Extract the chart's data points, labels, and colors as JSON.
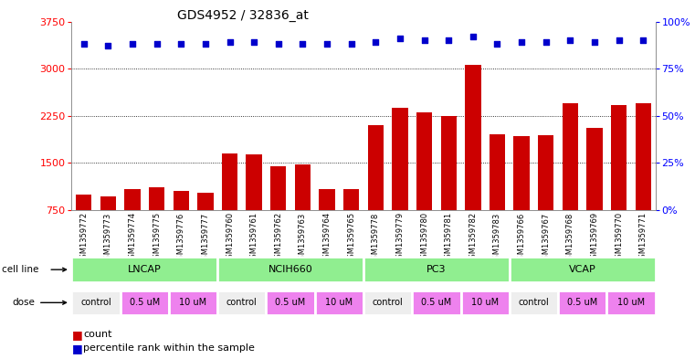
{
  "title": "GDS4952 / 32836_at",
  "samples": [
    "GSM1359772",
    "GSM1359773",
    "GSM1359774",
    "GSM1359775",
    "GSM1359776",
    "GSM1359777",
    "GSM1359760",
    "GSM1359761",
    "GSM1359762",
    "GSM1359763",
    "GSM1359764",
    "GSM1359765",
    "GSM1359778",
    "GSM1359779",
    "GSM1359780",
    "GSM1359781",
    "GSM1359782",
    "GSM1359783",
    "GSM1359766",
    "GSM1359767",
    "GSM1359768",
    "GSM1359769",
    "GSM1359770",
    "GSM1359771"
  ],
  "bar_values": [
    1000,
    960,
    1080,
    1110,
    1060,
    1030,
    1650,
    1640,
    1440,
    1480,
    1090,
    1090,
    2100,
    2380,
    2300,
    2250,
    3060,
    1960,
    1930,
    1940,
    2450,
    2050,
    2420,
    2450
  ],
  "percentile_values": [
    88,
    87,
    88,
    88,
    88,
    88,
    89,
    89,
    88,
    88,
    88,
    88,
    89,
    91,
    90,
    90,
    92,
    88,
    89,
    89,
    90,
    89,
    90,
    90
  ],
  "ylim_left": [
    750,
    3750
  ],
  "ylim_right": [
    0,
    100
  ],
  "yticks_left": [
    750,
    1500,
    2250,
    3000,
    3750
  ],
  "yticks_right": [
    0,
    25,
    50,
    75,
    100
  ],
  "bar_color": "#cc0000",
  "dot_color": "#0000cc",
  "bg_color": "#ffffff",
  "cell_line_color": "#90ee90",
  "control_color": "#f0f0f0",
  "dose_color": "#da70d6",
  "cell_lines": [
    "LNCAP",
    "NCIH660",
    "PC3",
    "VCAP"
  ],
  "dose_segments": [
    [
      0,
      2,
      "control",
      "#eeeeee"
    ],
    [
      2,
      4,
      "0.5 uM",
      "#ee82ee"
    ],
    [
      4,
      6,
      "10 uM",
      "#ee82ee"
    ],
    [
      6,
      8,
      "control",
      "#eeeeee"
    ],
    [
      8,
      10,
      "0.5 uM",
      "#ee82ee"
    ],
    [
      10,
      12,
      "10 uM",
      "#ee82ee"
    ],
    [
      12,
      14,
      "control",
      "#eeeeee"
    ],
    [
      14,
      16,
      "0.5 uM",
      "#ee82ee"
    ],
    [
      16,
      18,
      "10 uM",
      "#ee82ee"
    ],
    [
      18,
      20,
      "control",
      "#eeeeee"
    ],
    [
      20,
      22,
      "0.5 uM",
      "#ee82ee"
    ],
    [
      22,
      24,
      "10 uM",
      "#ee82ee"
    ]
  ],
  "grid_lines": [
    1500,
    2250,
    3000
  ],
  "label_cell_line": "cell line",
  "label_dose": "dose",
  "legend_count": "count",
  "legend_percentile": "percentile rank within the sample"
}
